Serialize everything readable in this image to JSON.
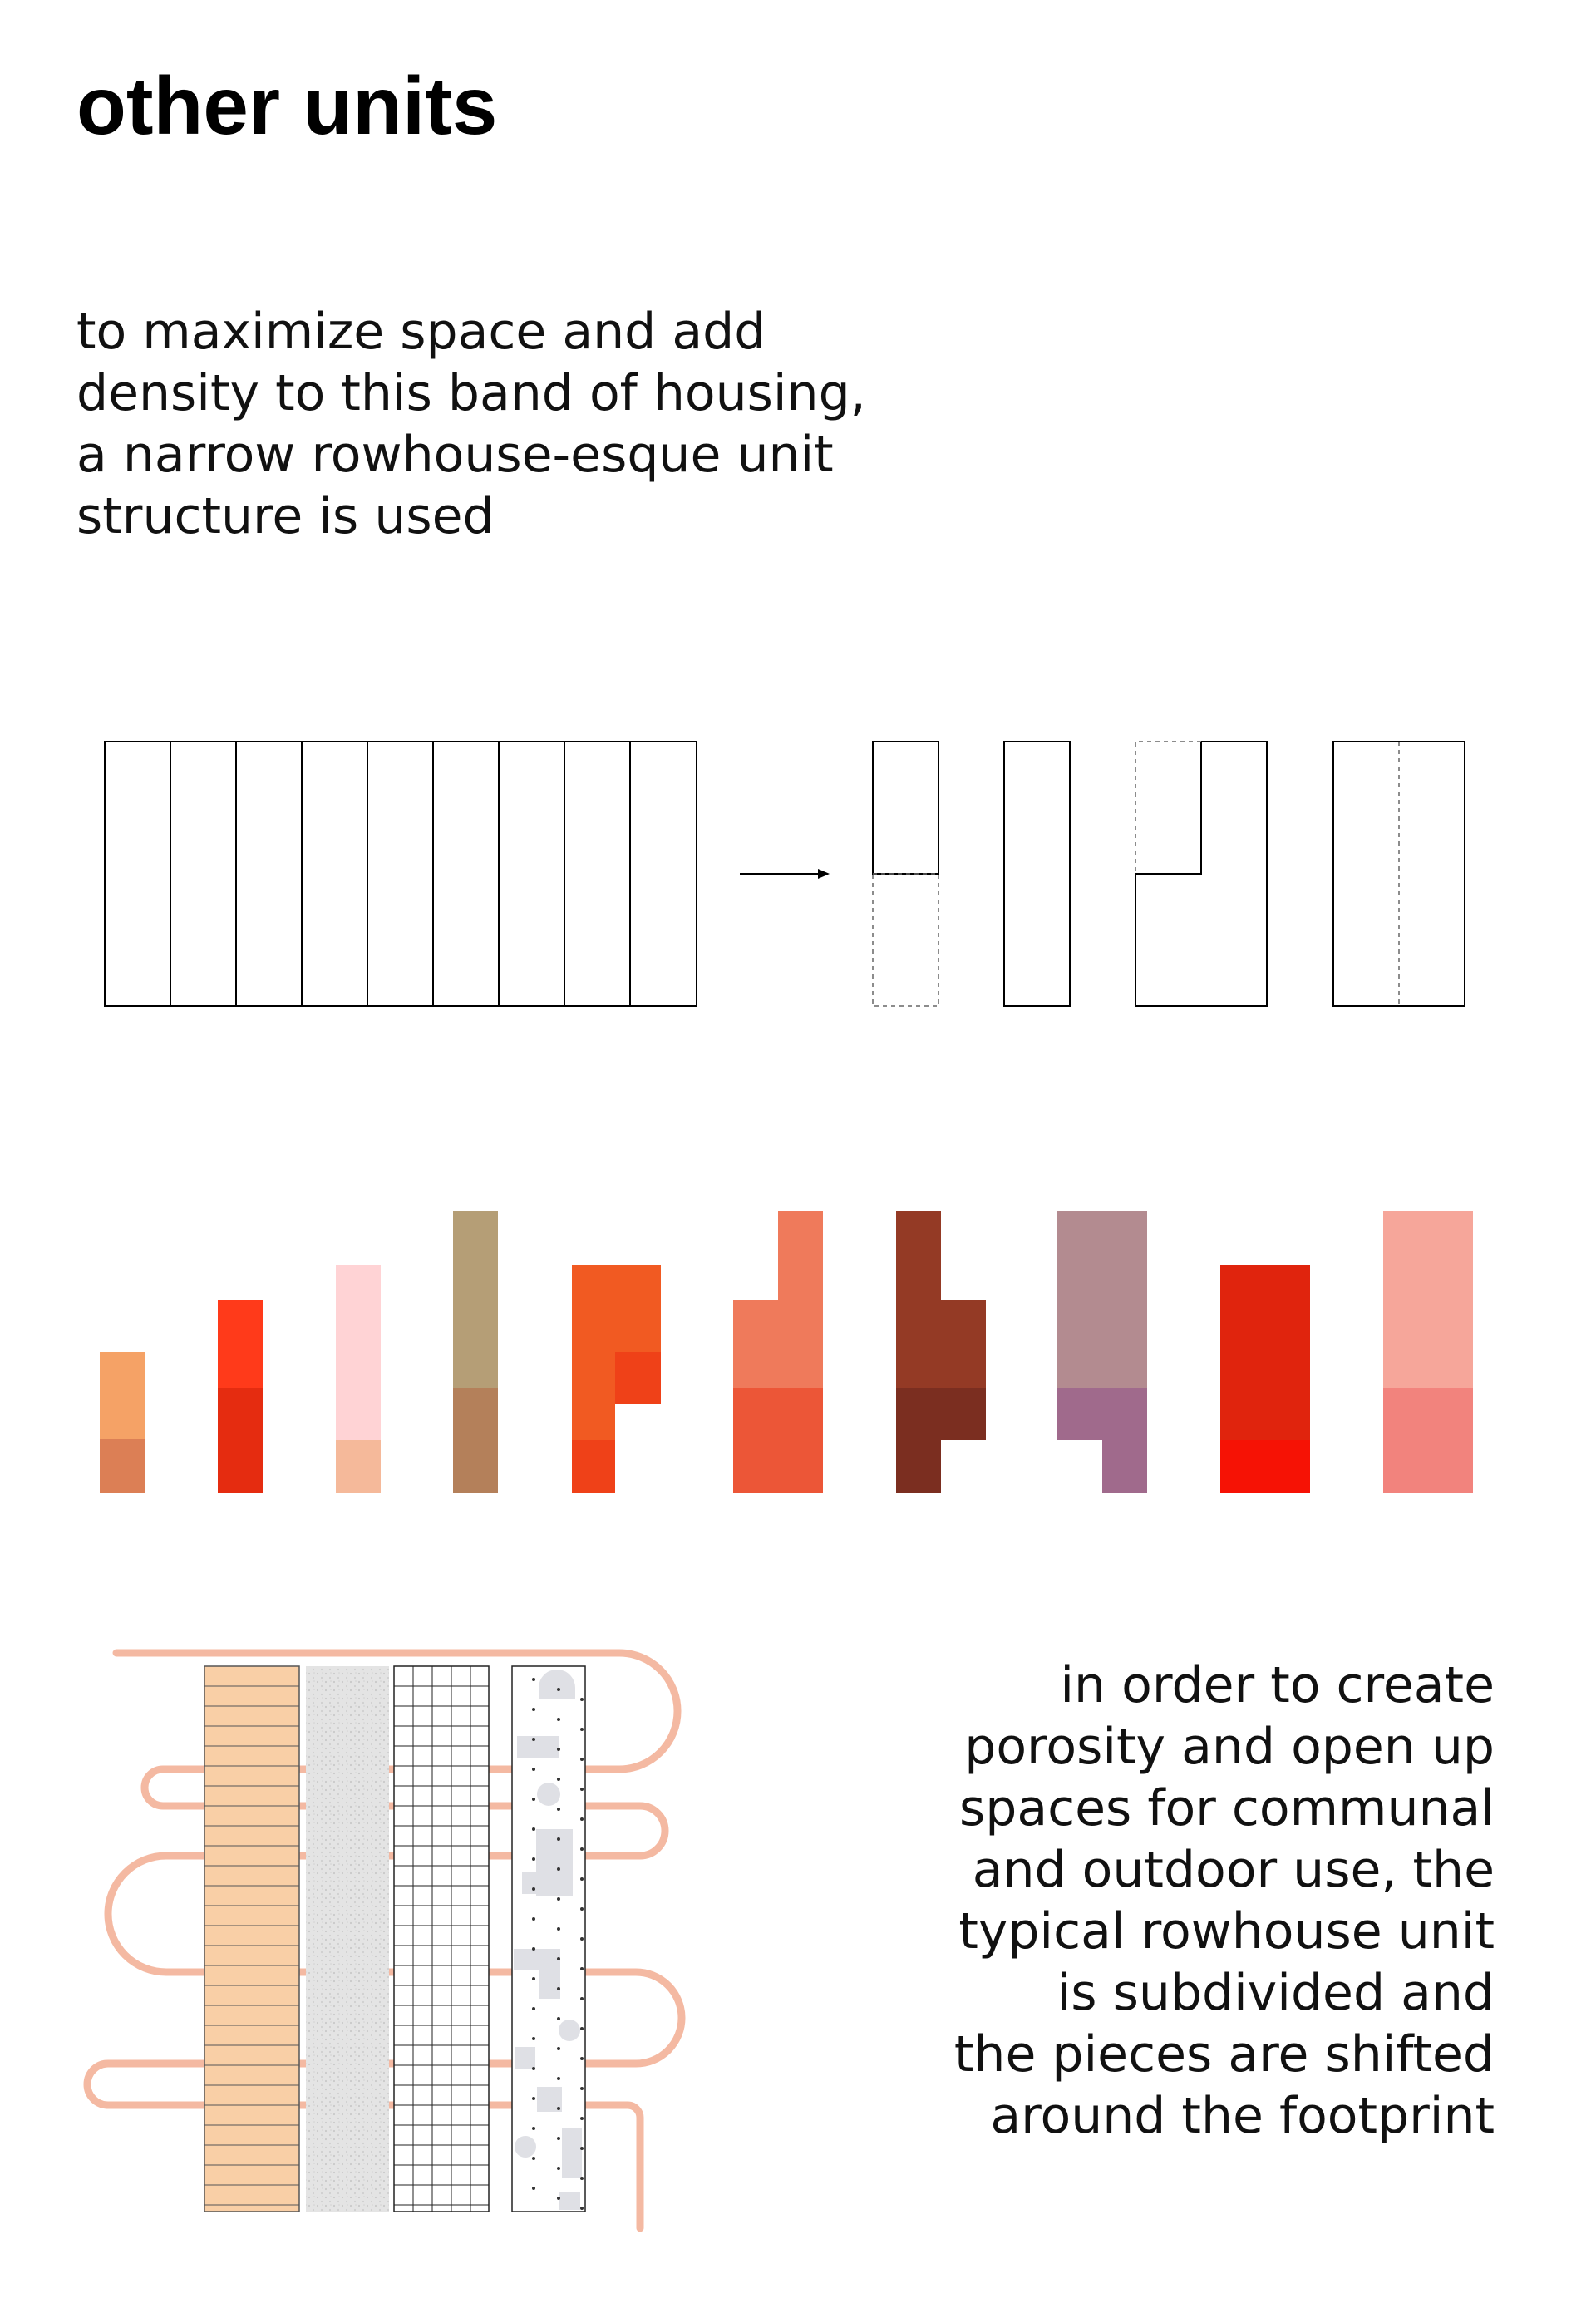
{
  "title": "other units",
  "intro_lines": [
    "to maximize space and add",
    "density to this band of housing,",
    "a narrow rowhouse-esque unit",
    "structure is used"
  ],
  "side_lines": [
    "in order to create",
    "porosity and open up",
    "spaces for communal",
    "and outdoor use, the",
    "typical rowhouse unit",
    "is subdivided  and",
    "the pieces are shifted",
    "around the footprint"
  ],
  "colors": {
    "unit_types": [
      [
        "#f5a266",
        "#dc7f55"
      ],
      [
        "#ff3a1a",
        "#e52c10"
      ],
      [
        "#ffd3d5",
        "#f5b99a"
      ],
      [
        "#b59e76",
        "#b4805a"
      ],
      [
        "#f15a22",
        "#ef4118"
      ],
      [
        "#ef7a5b",
        "#ec5637"
      ],
      [
        "#943a25",
        "#7b2e20"
      ],
      [
        "#b38b90",
        "#a06a8c"
      ],
      [
        "#e0240d",
        "#f61205"
      ],
      [
        "#f6a69a",
        "#f2837d"
      ]
    ],
    "path": "#f4b9a2",
    "orange_strip": "#f9cfa6",
    "stipple_strip": "#dcdcdc",
    "blob": "#dfe0e5"
  }
}
